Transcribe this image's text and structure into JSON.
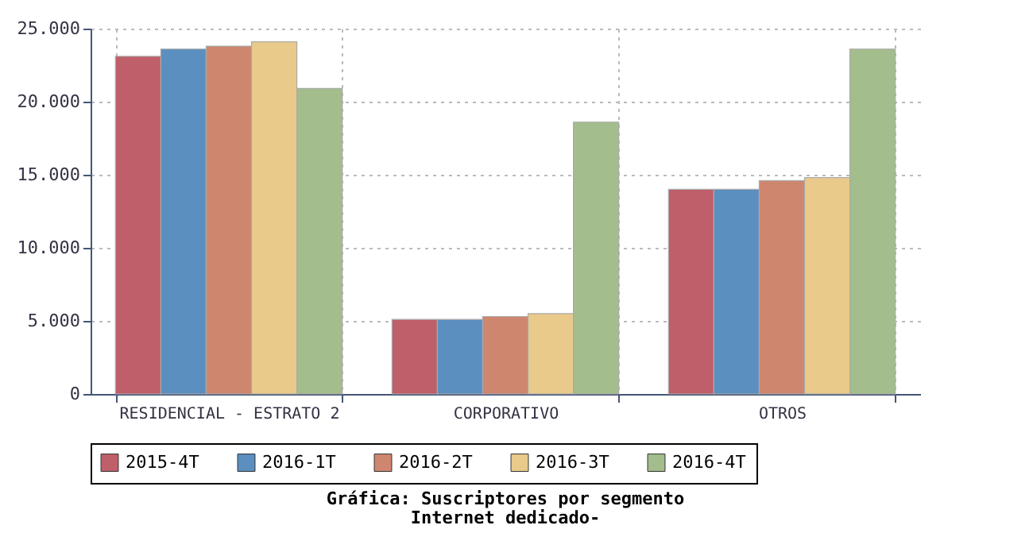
{
  "chart_data": {
    "type": "bar",
    "title": "Gráfica: Suscriptores por segmento",
    "subtitle": "Internet dedicado-",
    "categories": [
      "RESIDENCIAL - ESTRATO 2",
      "CORPORATIVO",
      "OTROS"
    ],
    "series": [
      {
        "name": "2015-4T",
        "color": "#bf5f69",
        "values": [
          23100,
          5100,
          14000
        ]
      },
      {
        "name": "2016-1T",
        "color": "#5b8fbf",
        "values": [
          23600,
          5100,
          14000
        ]
      },
      {
        "name": "2016-2T",
        "color": "#cf866f",
        "values": [
          23800,
          5300,
          14600
        ]
      },
      {
        "name": "2016-3T",
        "color": "#eaca8a",
        "values": [
          24100,
          5500,
          14800
        ]
      },
      {
        "name": "2016-4T",
        "color": "#a3bd8c",
        "values": [
          20900,
          18600,
          23600
        ]
      }
    ],
    "ylim": [
      0,
      25000
    ],
    "yticks": [
      0,
      {
        "value": 5000,
        "label": "5.000"
      },
      {
        "value": 10000,
        "label": "10.000"
      },
      {
        "value": 15000,
        "label": "15.000"
      },
      {
        "value": 20000,
        "label": "20.000"
      },
      {
        "value": 25000,
        "label": "25.000"
      }
    ],
    "grid": true,
    "legend": "bottom"
  }
}
